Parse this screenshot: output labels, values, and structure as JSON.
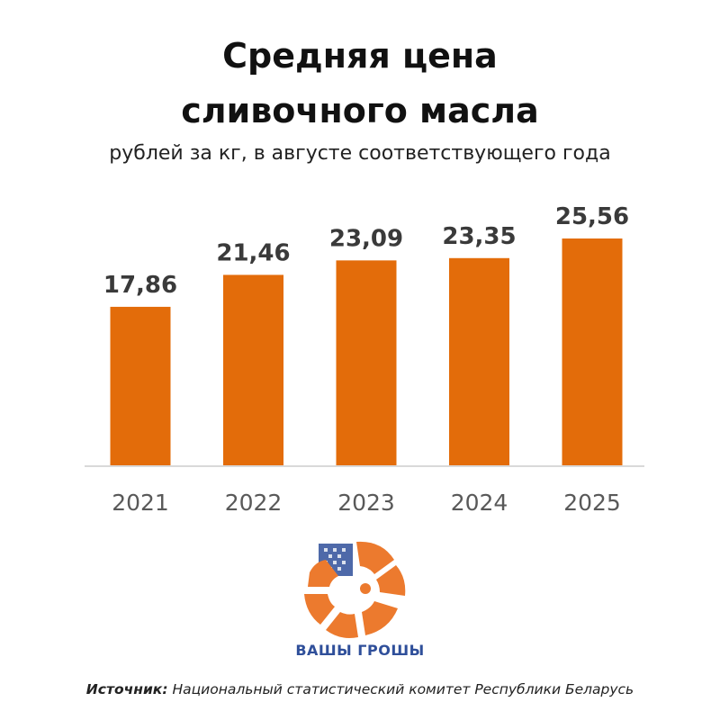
{
  "title_line1": "Средняя цена",
  "title_line2": "сливочного масла",
  "subtitle": "рублей за кг, в августе соответствующего года",
  "logo_text": "ВАШЫ ГРОШЫ",
  "source_label": "Источник:",
  "source_text": "Национальный статистический комитет Республики Беларусь",
  "colors": {
    "bar": "#e36c0a",
    "axis": "#d9d9d9",
    "value_label": "#3a3a3a",
    "tick_label": "#595959",
    "logo_orange": "#ec7a2e",
    "logo_blue": "#2f4f9a"
  },
  "chart_data": {
    "type": "bar",
    "categories": [
      "2021",
      "2022",
      "2023",
      "2024",
      "2025"
    ],
    "values": [
      17.86,
      21.46,
      23.09,
      23.35,
      25.56
    ],
    "value_labels": [
      "17,86",
      "21,46",
      "23,09",
      "23,35",
      "25,56"
    ],
    "title": "Средняя цена сливочного масла",
    "subtitle": "рублей за кг, в августе соответствующего года",
    "xlabel": "",
    "ylabel": "",
    "ylim": [
      0,
      25.56
    ],
    "grid": false,
    "legend": "none"
  }
}
